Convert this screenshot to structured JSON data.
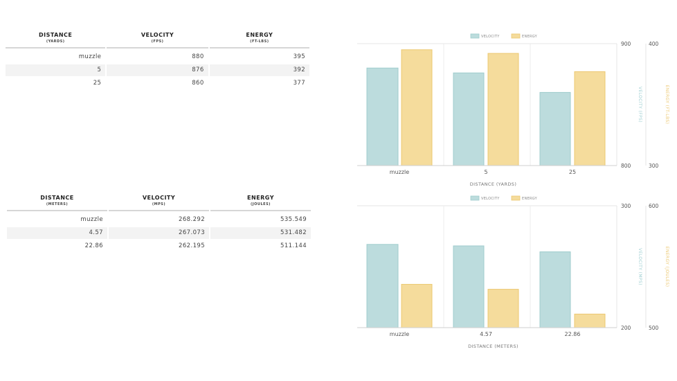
{
  "tables": [
    {
      "headers": [
        {
          "title": "DISTANCE",
          "unit": "(YARDS)"
        },
        {
          "title": "VELOCITY",
          "unit": "(FPS)"
        },
        {
          "title": "ENERGY",
          "unit": "(FT-LBS)"
        }
      ],
      "rows": [
        [
          "muzzle",
          "880",
          "395"
        ],
        [
          "5",
          "876",
          "392"
        ],
        [
          "25",
          "860",
          "377"
        ]
      ]
    },
    {
      "headers": [
        {
          "title": "DISTANCE",
          "unit": "(METERS)"
        },
        {
          "title": "VELOCITY",
          "unit": "(MPS)"
        },
        {
          "title": "ENERGY",
          "unit": "(JOULES)"
        }
      ],
      "rows": [
        [
          "muzzle",
          "268.292",
          "535.549"
        ],
        [
          "4.57",
          "267.073",
          "531.482"
        ],
        [
          "22.86",
          "262.195",
          "511.144"
        ]
      ]
    }
  ],
  "chart_data": [
    {
      "type": "bar",
      "categories": [
        "muzzle",
        "5",
        "25"
      ],
      "series": [
        {
          "name": "VELOCITY",
          "values": [
            880,
            876,
            860
          ],
          "axis": "left",
          "color": "#bcdcdd"
        },
        {
          "name": "ENERGY",
          "values": [
            395,
            392,
            377
          ],
          "axis": "right",
          "color": "#f5dc9c"
        }
      ],
      "xlabel": "DISTANCE (YARDS)",
      "ylabel_left": "VELOCITY (FPS)",
      "ylabel_right": "ENERGY (FT-LBS)",
      "ylim_left": [
        800,
        900
      ],
      "ylim_right": [
        300,
        400
      ],
      "tick_labels_left": [
        "900",
        "800"
      ],
      "tick_labels_right": [
        "400",
        "300"
      ],
      "legend": "top-center",
      "grid": true
    },
    {
      "type": "bar",
      "categories": [
        "muzzle",
        "4.57",
        "22.86"
      ],
      "series": [
        {
          "name": "VELOCITY",
          "values": [
            268.292,
            267.073,
            262.195
          ],
          "axis": "left",
          "color": "#bcdcdd"
        },
        {
          "name": "ENERGY",
          "values": [
            535.549,
            531.482,
            511.144
          ],
          "axis": "right",
          "color": "#f5dc9c"
        }
      ],
      "xlabel": "DISTANCE (METERS)",
      "ylabel_left": "VELOCITY (MPS)",
      "ylabel_right": "ENERGY (JOULES)",
      "ylim_left": [
        200,
        300
      ],
      "ylim_right": [
        500,
        600
      ],
      "tick_labels_left": [
        "300",
        "200"
      ],
      "tick_labels_right": [
        "600",
        "500"
      ],
      "legend": "top-center",
      "grid": true
    }
  ],
  "colors": {
    "velocity_fill": "#bcdcdd",
    "velocity_stroke": "#9fcccd",
    "energy_fill": "#f5dc9c",
    "energy_stroke": "#ecc871",
    "velocity_label": "#9fcfd2",
    "energy_label": "#ecc871"
  }
}
